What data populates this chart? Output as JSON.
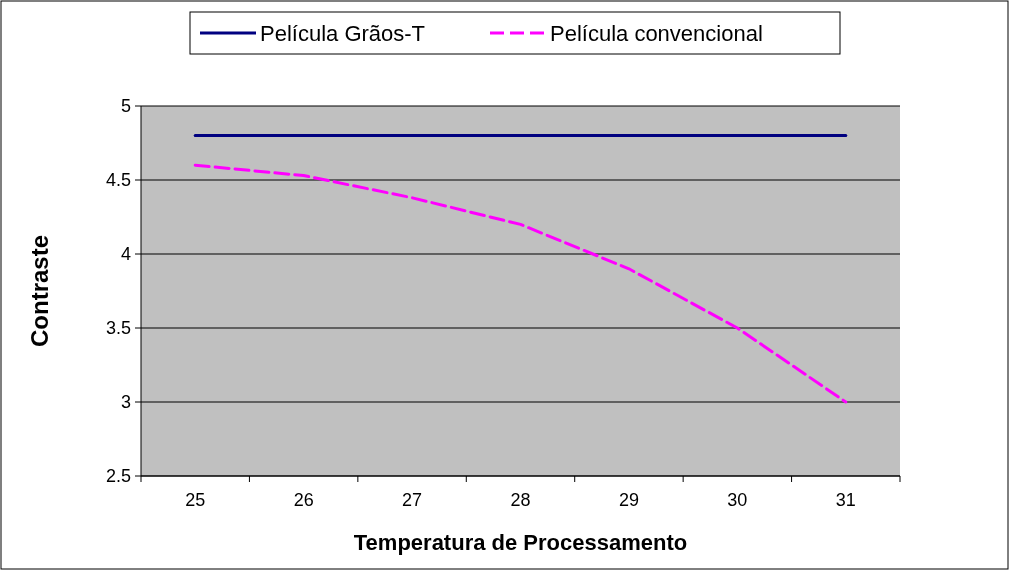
{
  "chart_data": {
    "type": "line",
    "xlabel": "Temperatura de Processamento",
    "ylabel": "Contraste",
    "categories": [
      "25",
      "26",
      "27",
      "28",
      "29",
      "30",
      "31"
    ],
    "series": [
      {
        "name": "Película Grãos-T",
        "color": "#000080",
        "line_style": "solid",
        "values": [
          4.8,
          4.8,
          4.8,
          4.8,
          4.8,
          4.8,
          4.8
        ]
      },
      {
        "name": "Película convencional",
        "color": "#ff00ff",
        "line_style": "dashed",
        "values": [
          4.6,
          4.53,
          4.38,
          4.2,
          3.9,
          3.5,
          3.0
        ]
      }
    ],
    "ylim": [
      2.5,
      5
    ],
    "yticks": [
      2.5,
      3,
      3.5,
      4,
      4.5,
      5
    ],
    "grid": "y",
    "legend": "top"
  }
}
